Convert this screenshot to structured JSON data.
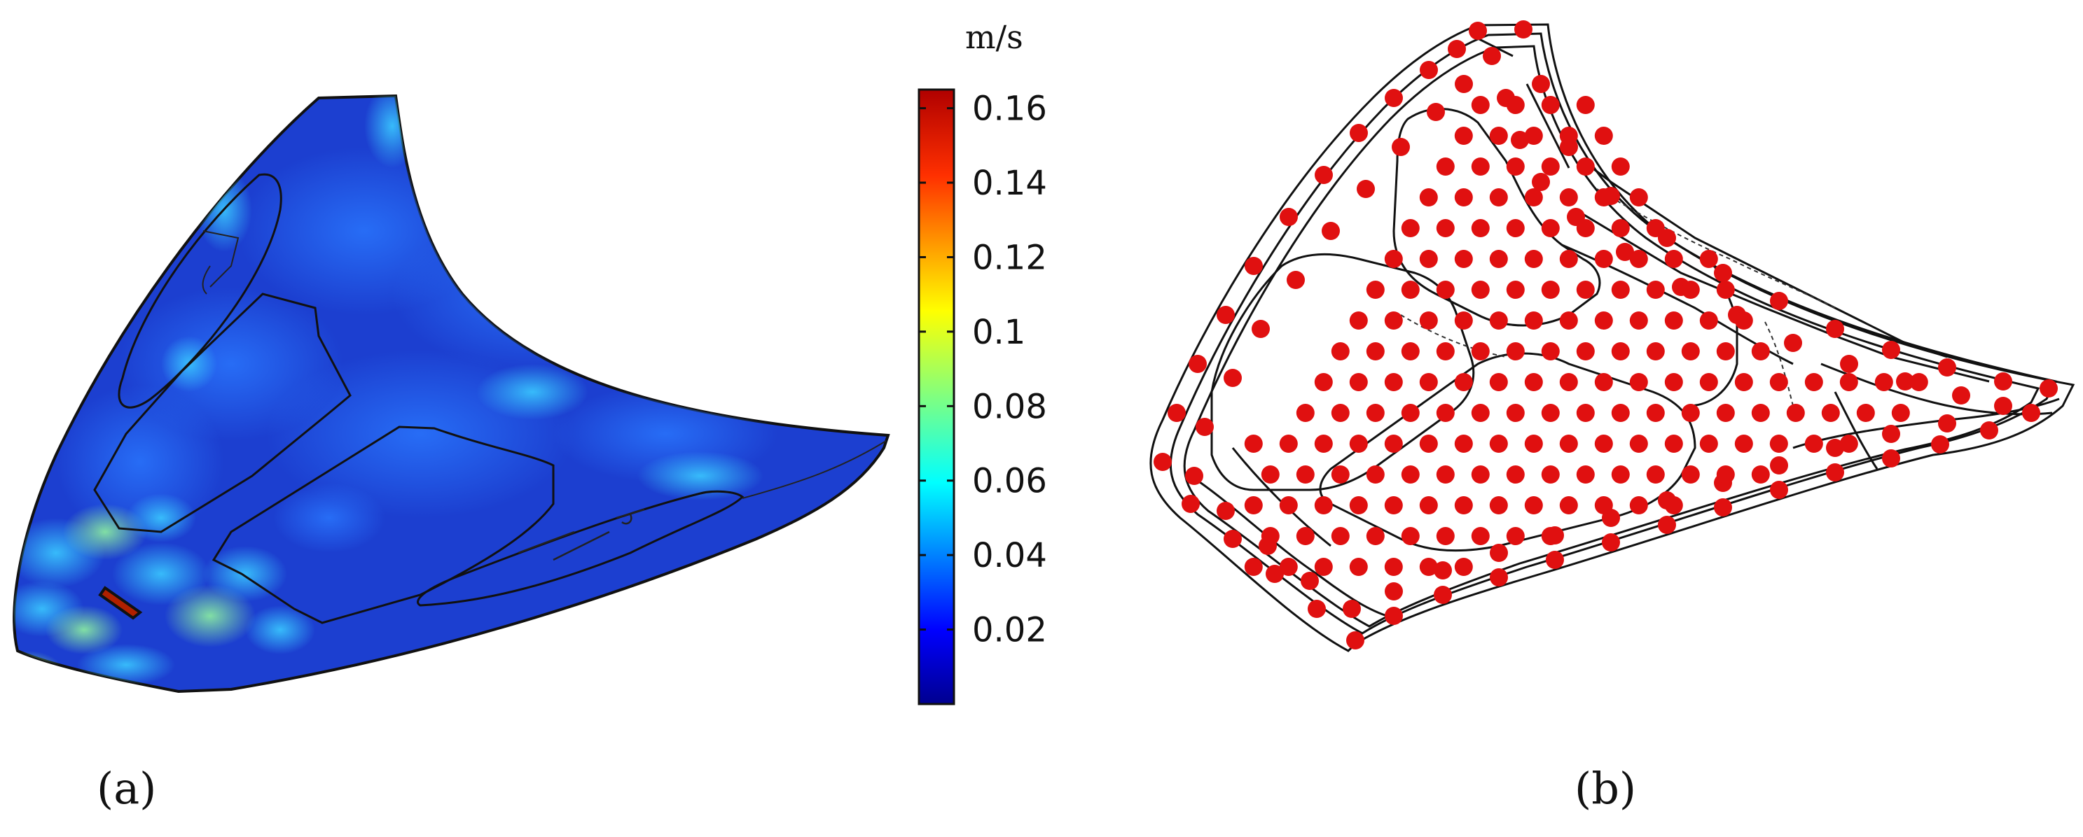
{
  "figure": {
    "panel_a_label": "(a)",
    "panel_b_label": "(b)"
  },
  "colorbar": {
    "unit": "m/s",
    "min": 0,
    "max": 0.165,
    "ticks": [
      {
        "value": 0.16,
        "label": "0.16"
      },
      {
        "value": 0.14,
        "label": "0.14"
      },
      {
        "value": 0.12,
        "label": "0.12"
      },
      {
        "value": 0.1,
        "label": "0.1"
      },
      {
        "value": 0.08,
        "label": "0.08"
      },
      {
        "value": 0.06,
        "label": "0.06"
      },
      {
        "value": 0.04,
        "label": "0.04"
      },
      {
        "value": 0.02,
        "label": "0.02"
      }
    ],
    "colormap": [
      "#00008f",
      "#0000ff",
      "#0080ff",
      "#00ffff",
      "#80ff80",
      "#ffff00",
      "#ff8000",
      "#ff0000",
      "#800000"
    ]
  },
  "colors": {
    "hood_fill": "#1a3fd4",
    "hood_outline": "#111111",
    "marker": "#e01010",
    "wireframe": "#111111"
  }
}
